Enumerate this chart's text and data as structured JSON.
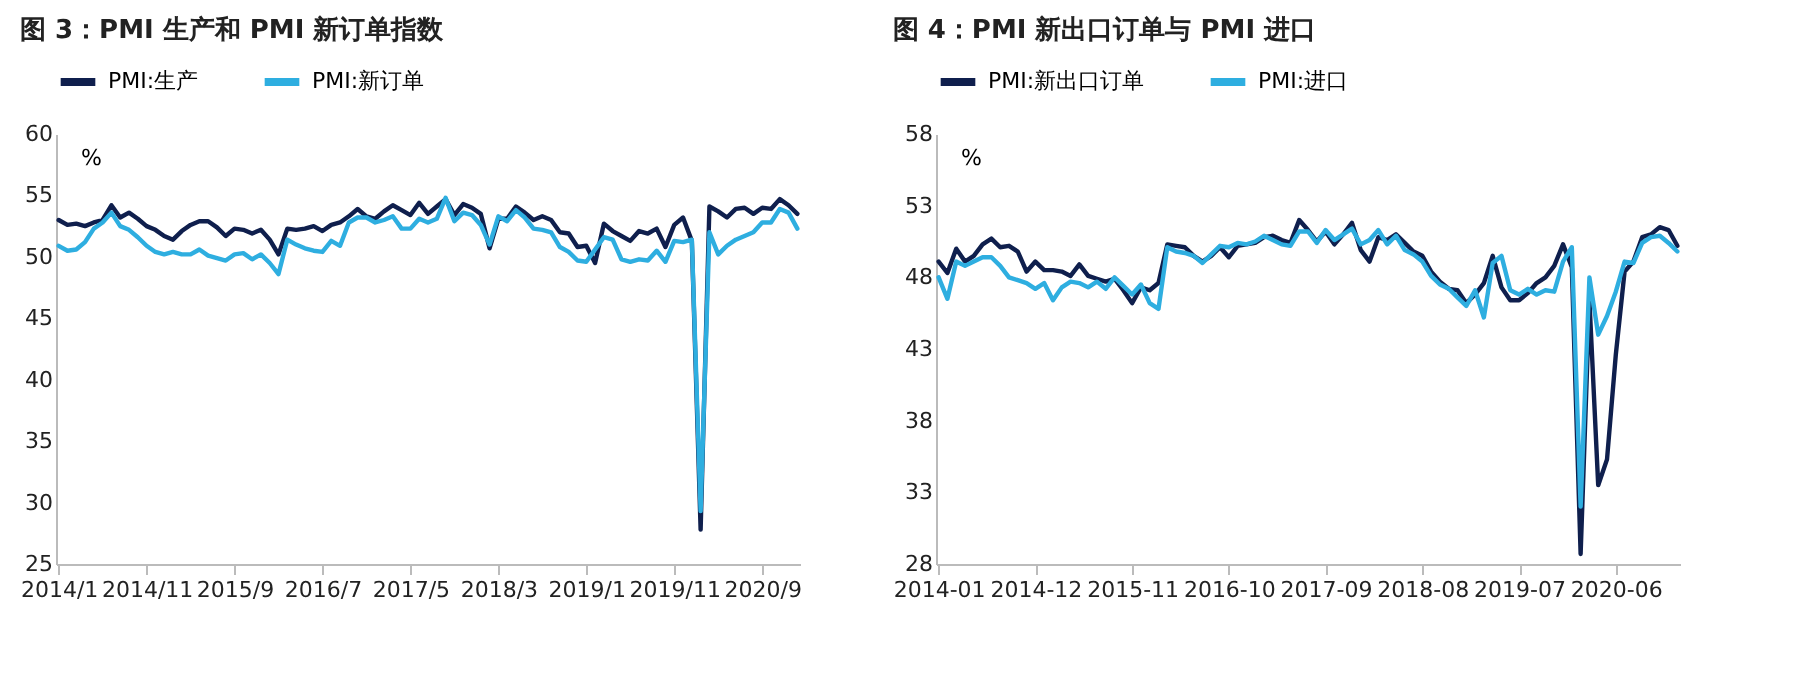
{
  "chart_data": [
    {
      "type": "line",
      "title": "图 3：PMI 生产和 PMI 新订单指数",
      "ylabel": "%",
      "categories": [
        "2014/1",
        null,
        null,
        null,
        null,
        null,
        null,
        null,
        null,
        null,
        "2014/11",
        null,
        null,
        null,
        null,
        null,
        null,
        null,
        null,
        null,
        "2015/9",
        null,
        null,
        null,
        null,
        null,
        null,
        null,
        null,
        null,
        "2016/7",
        null,
        null,
        null,
        null,
        null,
        null,
        null,
        null,
        null,
        "2017/5",
        null,
        null,
        null,
        null,
        null,
        null,
        null,
        null,
        null,
        "2018/3",
        null,
        null,
        null,
        null,
        null,
        null,
        null,
        null,
        null,
        "2019/1",
        null,
        null,
        null,
        null,
        null,
        null,
        null,
        null,
        null,
        "2019/11",
        null,
        null,
        null,
        null,
        null,
        null,
        null,
        null,
        null,
        "2020/9",
        null,
        null,
        null,
        null
      ],
      "series": [
        {
          "name": "PMI:生产",
          "color": "#0f1f4d",
          "values": [
            53.0,
            52.6,
            52.7,
            52.5,
            52.8,
            53.0,
            54.2,
            53.2,
            53.6,
            53.1,
            52.5,
            52.2,
            51.7,
            51.4,
            52.1,
            52.6,
            52.9,
            52.9,
            52.4,
            51.7,
            52.3,
            52.2,
            51.9,
            52.2,
            51.4,
            50.2,
            52.3,
            52.2,
            52.3,
            52.5,
            52.1,
            52.6,
            52.8,
            53.3,
            53.9,
            53.3,
            53.1,
            53.7,
            54.2,
            53.8,
            53.4,
            54.4,
            53.5,
            54.1,
            54.7,
            53.4,
            54.3,
            54.0,
            53.5,
            50.7,
            53.1,
            53.1,
            54.1,
            53.6,
            53.0,
            53.3,
            53.0,
            52.0,
            51.9,
            50.8,
            50.9,
            49.5,
            52.7,
            52.1,
            51.7,
            51.3,
            52.1,
            51.9,
            52.3,
            50.8,
            52.6,
            53.2,
            51.3,
            27.8,
            54.1,
            53.7,
            53.2,
            53.9,
            54.0,
            53.5,
            54.0,
            53.9,
            54.7,
            54.2,
            53.5
          ]
        },
        {
          "name": "PMI:新订单",
          "color": "#2eaee0",
          "values": [
            50.9,
            50.5,
            50.6,
            51.2,
            52.3,
            52.8,
            53.6,
            52.5,
            52.2,
            51.6,
            50.9,
            50.4,
            50.2,
            50.4,
            50.2,
            50.2,
            50.6,
            50.1,
            49.9,
            49.7,
            50.2,
            50.3,
            49.8,
            50.2,
            49.5,
            48.6,
            51.4,
            51.0,
            50.7,
            50.5,
            50.4,
            51.3,
            50.9,
            52.8,
            53.2,
            53.2,
            52.8,
            53.0,
            53.3,
            52.3,
            52.3,
            53.1,
            52.8,
            53.1,
            54.8,
            52.9,
            53.6,
            53.4,
            52.6,
            51.0,
            53.3,
            52.9,
            53.8,
            53.2,
            52.3,
            52.2,
            52.0,
            50.8,
            50.4,
            49.7,
            49.6,
            50.6,
            51.6,
            51.4,
            49.8,
            49.6,
            49.8,
            49.7,
            50.5,
            49.6,
            51.3,
            51.2,
            51.4,
            29.3,
            52.0,
            50.2,
            50.9,
            51.4,
            51.7,
            52.0,
            52.8,
            52.8,
            53.9,
            53.6,
            52.3
          ]
        }
      ],
      "ylim": [
        25,
        60
      ],
      "yticks": [
        25,
        30,
        35,
        40,
        45,
        50,
        55,
        60
      ],
      "grid": false,
      "legend": "top"
    },
    {
      "type": "line",
      "title": "图 4：PMI 新出口订单与 PMI 进口",
      "ylabel": "%",
      "categories": [
        "2014-01",
        null,
        null,
        null,
        null,
        null,
        null,
        null,
        null,
        null,
        null,
        "2014-12",
        null,
        null,
        null,
        null,
        null,
        null,
        null,
        null,
        null,
        null,
        "2015-11",
        null,
        null,
        null,
        null,
        null,
        null,
        null,
        null,
        null,
        null,
        "2016-10",
        null,
        null,
        null,
        null,
        null,
        null,
        null,
        null,
        null,
        null,
        "2017-09",
        null,
        null,
        null,
        null,
        null,
        null,
        null,
        null,
        null,
        null,
        "2018-08",
        null,
        null,
        null,
        null,
        null,
        null,
        null,
        null,
        null,
        null,
        "2019-07",
        null,
        null,
        null,
        null,
        null,
        null,
        null,
        null,
        null,
        null,
        "2020-06",
        null,
        null,
        null,
        null,
        null,
        null,
        null
      ],
      "series": [
        {
          "name": "PMI:新出口订单",
          "color": "#0f1f4d",
          "values": [
            49.1,
            48.3,
            50.0,
            49.1,
            49.5,
            50.3,
            50.7,
            50.1,
            50.2,
            49.8,
            48.4,
            49.1,
            48.5,
            48.5,
            48.4,
            48.1,
            48.9,
            48.1,
            47.9,
            47.7,
            47.9,
            47.1,
            46.2,
            47.3,
            47.1,
            47.6,
            50.3,
            50.2,
            50.1,
            49.5,
            49.1,
            49.5,
            50.1,
            49.4,
            50.2,
            50.3,
            50.4,
            50.8,
            50.9,
            50.6,
            50.4,
            52.0,
            51.3,
            50.5,
            51.2,
            50.3,
            51.0,
            51.8,
            49.9,
            49.1,
            50.8,
            50.6,
            51.0,
            50.4,
            49.8,
            49.5,
            48.4,
            47.7,
            47.2,
            47.1,
            46.2,
            46.8,
            47.6,
            49.5,
            47.3,
            46.4,
            46.4,
            46.9,
            47.6,
            48.0,
            48.8,
            50.3,
            48.7,
            28.7,
            46.4,
            33.5,
            35.3,
            42.6,
            48.4,
            49.1,
            50.8,
            51.0,
            51.5,
            51.3,
            50.2
          ]
        },
        {
          "name": "PMI:进口",
          "color": "#2eaee0",
          "values": [
            48.0,
            46.5,
            49.1,
            48.8,
            49.1,
            49.4,
            49.4,
            48.8,
            48.0,
            47.8,
            47.6,
            47.2,
            47.6,
            46.4,
            47.3,
            47.7,
            47.6,
            47.3,
            47.7,
            47.2,
            48.0,
            47.4,
            46.8,
            47.5,
            46.2,
            45.8,
            50.1,
            49.8,
            49.7,
            49.5,
            49.0,
            49.6,
            50.2,
            50.1,
            50.4,
            50.3,
            50.5,
            50.9,
            50.6,
            50.3,
            50.2,
            51.2,
            51.2,
            50.4,
            51.3,
            50.6,
            51.0,
            51.4,
            50.3,
            50.6,
            51.3,
            50.3,
            50.9,
            49.9,
            49.6,
            49.1,
            48.1,
            47.5,
            47.2,
            46.6,
            46.0,
            47.1,
            45.2,
            49.0,
            49.5,
            47.1,
            46.8,
            47.2,
            46.8,
            47.1,
            47.0,
            49.1,
            50.1,
            32.0,
            48.0,
            44.0,
            45.3,
            47.0,
            49.1,
            49.0,
            50.4,
            50.8,
            50.9,
            50.4,
            49.8
          ]
        }
      ],
      "ylim": [
        28,
        58
      ],
      "yticks": [
        28,
        33,
        38,
        43,
        48,
        53,
        58
      ],
      "grid": false,
      "legend": "top"
    }
  ]
}
